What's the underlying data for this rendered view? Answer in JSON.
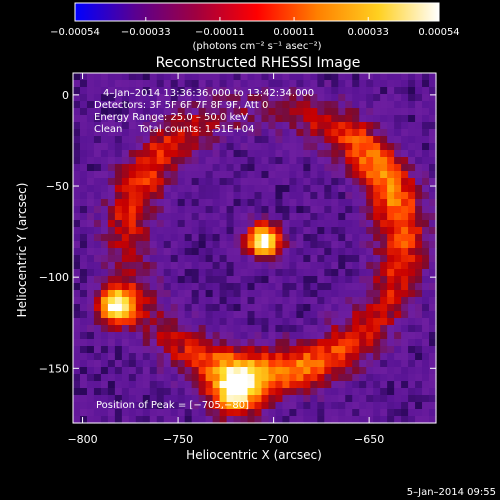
{
  "chart_data": {
    "type": "heatmap",
    "title": "Reconstructed RHESSI Image",
    "xlabel": "Heliocentric X (arcsec)",
    "ylabel": "Heliocentric Y (arcsec)",
    "xlim": [
      -805,
      -615
    ],
    "ylim": [
      -180,
      12
    ],
    "x_ticks": [
      -800,
      -750,
      -700,
      -650
    ],
    "x_tick_labels": [
      "−800",
      "−750",
      "−700",
      "−650"
    ],
    "y_ticks": [
      0,
      -50,
      -100,
      -150
    ],
    "y_tick_labels": [
      "0",
      "−50",
      "−100",
      "−150"
    ],
    "colorbar": {
      "min": -0.00054,
      "max": 0.00054,
      "ticks": [
        -0.00054,
        -0.00033,
        -0.00011,
        0.00011,
        0.00033,
        0.00054
      ],
      "tick_labels": [
        "−0.00054",
        "−0.00033",
        "−0.00011",
        "0.00011",
        "0.00033",
        "0.00054"
      ],
      "units_label": "(photons cm⁻² s⁻¹ asec⁻²)",
      "colors": [
        "#0000ff",
        "#5a0090",
        "#a00040",
        "#ff0000",
        "#ff8000",
        "#ffd020",
        "#ffffff"
      ]
    },
    "info_lines": [
      "4–Jan–2014 13:36:36.000 to 13:42:34.000",
      "Detectors: 3F 5F 6F 7F 8F 9F, Att 0",
      "Energy Range: 25.0 – 50.0 keV",
      "Clean     Total counts: 1.51E+04"
    ],
    "peak_label": "Position of Peak = [−705,−80]",
    "peak": [
      -705,
      -80
    ],
    "sources": [
      {
        "x": -705,
        "y": -80,
        "sigma": 6,
        "amp": 1.0
      },
      {
        "x": -782,
        "y": -116,
        "sigma": 7,
        "amp": 0.92
      },
      {
        "x": -720,
        "y": -163,
        "sigma": 9,
        "amp": 0.78
      }
    ],
    "ring": {
      "cx": -705,
      "cy": -80,
      "radius": 72,
      "width": 9,
      "amp": 0.55
    },
    "background_level": 0.12
  },
  "footer_date": "5–Jan–2014 09:55"
}
